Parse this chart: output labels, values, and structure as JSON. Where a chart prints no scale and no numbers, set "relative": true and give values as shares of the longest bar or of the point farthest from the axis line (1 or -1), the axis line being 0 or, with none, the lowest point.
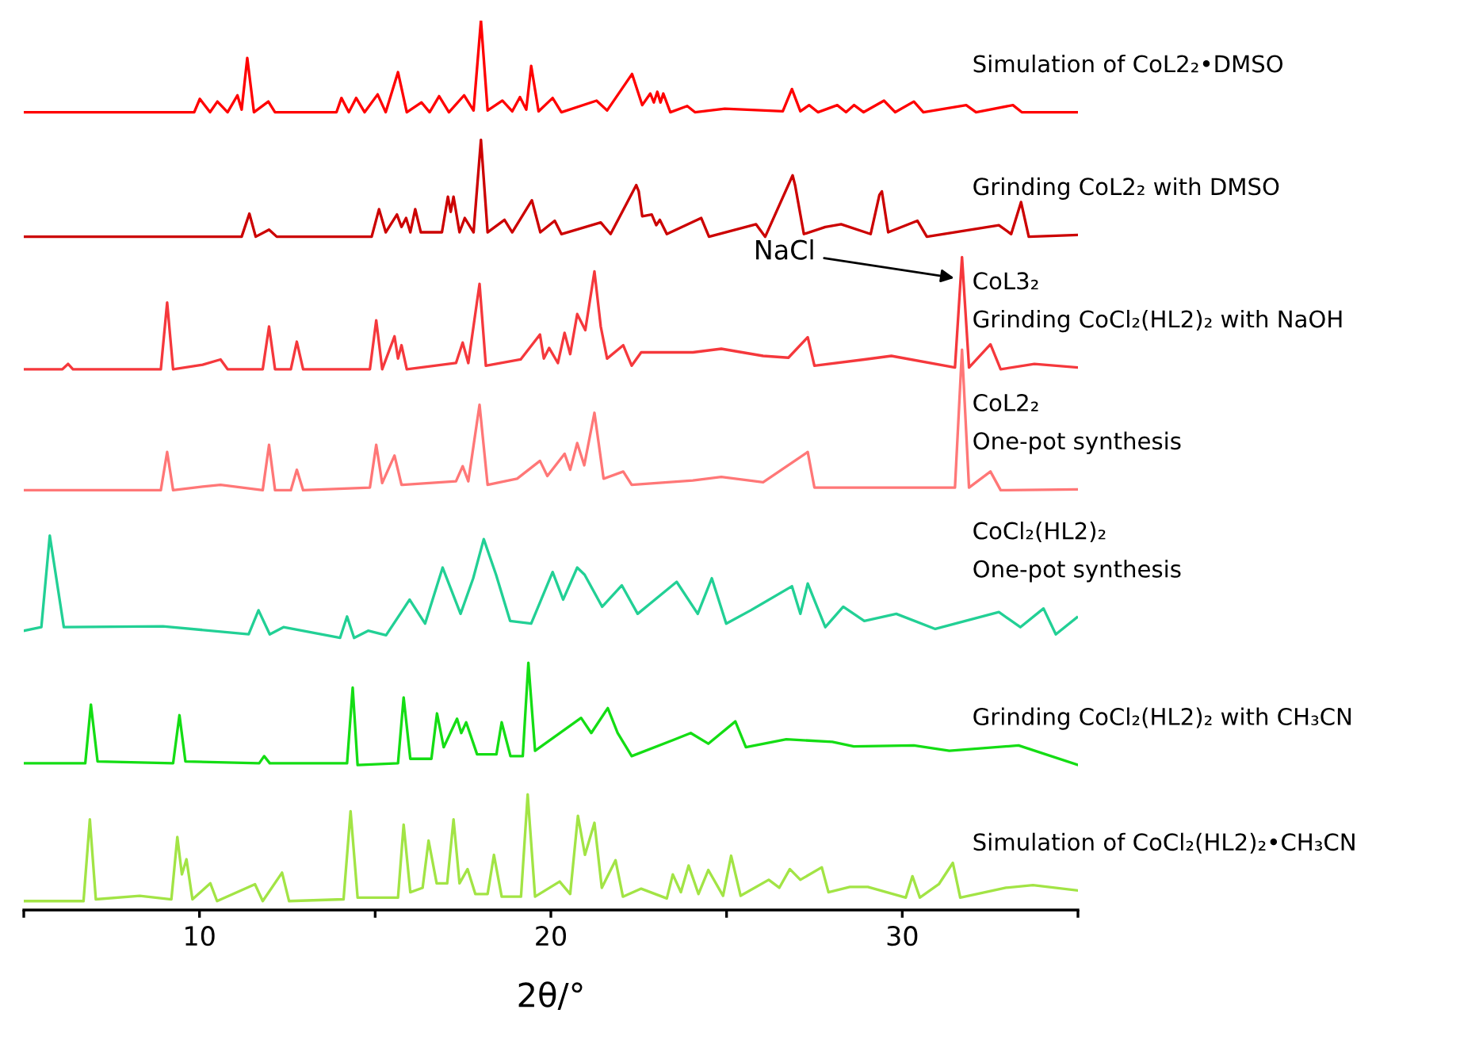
{
  "chart_data": {
    "type": "line",
    "relative": true,
    "xlabel": "2θ/°",
    "xlim": [
      5,
      35
    ],
    "xticks": [
      {
        "value": 5,
        "label": null
      },
      10,
      {
        "value": 15,
        "label": null
      },
      20,
      {
        "value": 25,
        "label": null
      },
      30,
      {
        "value": 35,
        "label": null
      }
    ],
    "tick_labels": "x",
    "grid": false,
    "legend": false,
    "annotations": [
      {
        "text": "NaCl",
        "x": 31.6,
        "y": 0.71
      }
    ],
    "series": [
      {
        "name": "Simulation of CoL2₂•DMSO",
        "color": "#ff0000",
        "x": [
          5.0,
          9.85,
          10.01,
          10.3,
          10.51,
          10.8,
          11.08,
          11.2,
          11.36,
          11.55,
          11.96,
          12.15,
          13.9,
          14.04,
          14.25,
          14.46,
          14.7,
          15.07,
          15.3,
          15.65,
          15.9,
          16.32,
          16.55,
          16.82,
          17.1,
          17.53,
          17.8,
          18.01,
          18.2,
          18.62,
          18.9,
          19.12,
          19.3,
          19.44,
          19.65,
          20.05,
          20.3,
          21.3,
          21.6,
          22.31,
          22.6,
          22.83,
          22.93,
          23.03,
          23.12,
          23.2,
          23.4,
          23.88,
          24.1,
          24.95,
          26.6,
          26.86,
          27.1,
          27.35,
          27.6,
          28.15,
          28.4,
          28.63,
          28.9,
          29.48,
          29.8,
          30.33,
          30.6,
          31.82,
          32.1,
          33.15,
          33.4,
          35.0
        ],
        "values": [
          0.897,
          0.897,
          0.912,
          0.897,
          0.909,
          0.897,
          0.916,
          0.9,
          0.958,
          0.897,
          0.909,
          0.897,
          0.897,
          0.913,
          0.897,
          0.913,
          0.897,
          0.917,
          0.897,
          0.942,
          0.897,
          0.908,
          0.897,
          0.915,
          0.897,
          0.916,
          0.899,
          1,
          0.899,
          0.91,
          0.898,
          0.914,
          0.9,
          0.949,
          0.898,
          0.913,
          0.897,
          0.91,
          0.899,
          0.94,
          0.905,
          0.918,
          0.908,
          0.92,
          0.908,
          0.918,
          0.897,
          0.904,
          0.897,
          0.901,
          0.898,
          0.923,
          0.898,
          0.905,
          0.897,
          0.905,
          0.897,
          0.905,
          0.897,
          0.91,
          0.897,
          0.909,
          0.897,
          0.905,
          0.897,
          0.905,
          0.897,
          0.897
        ]
      },
      {
        "name": "Grinding CoL2₂ with DMSO",
        "color": "#cc0000",
        "x": [
          5.0,
          11.2,
          11.42,
          11.6,
          11.98,
          12.2,
          14.9,
          15.11,
          15.3,
          15.62,
          15.75,
          15.88,
          16.0,
          16.14,
          16.3,
          16.9,
          17.07,
          17.15,
          17.23,
          17.4,
          17.55,
          17.8,
          18.01,
          18.2,
          18.68,
          18.9,
          19.46,
          19.7,
          20.11,
          20.3,
          21.42,
          21.7,
          22.43,
          22.5,
          22.6,
          22.87,
          23.0,
          23.1,
          23.3,
          24.28,
          24.5,
          25.84,
          26.1,
          26.88,
          26.95,
          27.2,
          27.81,
          28.26,
          29.1,
          29.35,
          29.42,
          29.6,
          30.43,
          30.7,
          32.75,
          33.1,
          33.38,
          33.6,
          35.0
        ],
        "values": [
          0.757,
          0.757,
          0.783,
          0.757,
          0.765,
          0.757,
          0.757,
          0.788,
          0.762,
          0.782,
          0.768,
          0.778,
          0.762,
          0.788,
          0.762,
          0.762,
          0.802,
          0.785,
          0.802,
          0.762,
          0.778,
          0.762,
          0.866,
          0.762,
          0.776,
          0.762,
          0.798,
          0.762,
          0.775,
          0.76,
          0.773,
          0.76,
          0.815,
          0.808,
          0.78,
          0.782,
          0.77,
          0.776,
          0.76,
          0.778,
          0.757,
          0.771,
          0.757,
          0.826,
          0.815,
          0.76,
          0.768,
          0.771,
          0.76,
          0.804,
          0.808,
          0.762,
          0.775,
          0.757,
          0.77,
          0.76,
          0.796,
          0.757,
          0.759
        ]
      },
      {
        "name": "CoL3₂\nGrinding CoCl₂(HL2)₂ with NaOH",
        "color": "#f5383c",
        "x": [
          5.0,
          6.1,
          6.26,
          6.4,
          8.9,
          9.08,
          9.25,
          10.09,
          10.6,
          10.8,
          11.8,
          11.98,
          12.15,
          12.6,
          12.77,
          12.95,
          14.85,
          15.03,
          15.2,
          15.55,
          15.65,
          15.75,
          15.9,
          17.3,
          17.49,
          17.65,
          17.97,
          18.15,
          19.14,
          19.69,
          19.8,
          19.95,
          20.2,
          20.39,
          20.55,
          20.75,
          20.98,
          21.24,
          21.42,
          21.6,
          22.06,
          22.3,
          22.57,
          24.04,
          24.85,
          26.04,
          26.76,
          27.31,
          27.5,
          28.92,
          29.69,
          31.5,
          31.7,
          31.9,
          32.51,
          32.8,
          33.76,
          35.0
        ],
        "values": [
          0.608,
          0.608,
          0.614,
          0.608,
          0.608,
          0.683,
          0.608,
          0.613,
          0.619,
          0.608,
          0.608,
          0.656,
          0.608,
          0.608,
          0.639,
          0.608,
          0.608,
          0.663,
          0.608,
          0.645,
          0.62,
          0.635,
          0.608,
          0.615,
          0.638,
          0.615,
          0.704,
          0.612,
          0.619,
          0.647,
          0.62,
          0.632,
          0.615,
          0.649,
          0.625,
          0.67,
          0.652,
          0.718,
          0.656,
          0.62,
          0.635,
          0.612,
          0.627,
          0.627,
          0.631,
          0.623,
          0.621,
          0.644,
          0.612,
          0.619,
          0.623,
          0.61,
          0.734,
          0.61,
          0.636,
          0.608,
          0.614,
          0.61
        ]
      },
      {
        "name": "CoL2₂\nOne-pot synthesis",
        "color": "#ff7777",
        "x": [
          5.0,
          8.9,
          9.08,
          9.25,
          10.09,
          10.6,
          11.8,
          11.98,
          12.15,
          12.6,
          12.77,
          12.95,
          14.85,
          15.03,
          15.2,
          15.55,
          15.75,
          17.3,
          17.49,
          17.65,
          17.97,
          18.2,
          19.04,
          19.69,
          19.9,
          20.39,
          20.55,
          20.75,
          20.95,
          21.24,
          21.5,
          22.06,
          22.3,
          24.04,
          24.85,
          26.04,
          27.31,
          27.5,
          31.5,
          31.7,
          31.9,
          32.51,
          32.8,
          35.0
        ],
        "values": [
          0.472,
          0.472,
          0.515,
          0.472,
          0.476,
          0.478,
          0.472,
          0.523,
          0.472,
          0.472,
          0.495,
          0.472,
          0.475,
          0.523,
          0.48,
          0.511,
          0.478,
          0.482,
          0.499,
          0.482,
          0.568,
          0.478,
          0.485,
          0.505,
          0.488,
          0.513,
          0.495,
          0.525,
          0.5,
          0.559,
          0.485,
          0.493,
          0.478,
          0.483,
          0.487,
          0.481,
          0.515,
          0.475,
          0.475,
          0.63,
          0.475,
          0.493,
          0.472,
          0.473
        ]
      },
      {
        "name": "CoCl₂(HL2)₂\nOne-pot synthesis",
        "color": "#22d095",
        "x": [
          5.0,
          5.5,
          5.74,
          6.14,
          8.96,
          11.4,
          11.68,
          12.0,
          12.39,
          14.0,
          14.2,
          14.4,
          14.8,
          15.31,
          15.98,
          16.42,
          16.92,
          17.43,
          17.79,
          18.09,
          18.44,
          18.84,
          19.44,
          20.05,
          20.35,
          20.75,
          20.96,
          21.46,
          22.02,
          22.47,
          23.58,
          24.18,
          24.58,
          24.99,
          25.69,
          26.86,
          27.1,
          27.31,
          27.81,
          28.32,
          28.92,
          29.83,
          30.94,
          32.75,
          33.36,
          34.02,
          34.37,
          34.97
        ],
        "values": [
          0.314,
          0.318,
          0.421,
          0.318,
          0.319,
          0.31,
          0.337,
          0.31,
          0.318,
          0.306,
          0.33,
          0.306,
          0.314,
          0.309,
          0.349,
          0.322,
          0.385,
          0.333,
          0.373,
          0.417,
          0.377,
          0.325,
          0.322,
          0.38,
          0.349,
          0.385,
          0.377,
          0.341,
          0.365,
          0.333,
          0.369,
          0.333,
          0.373,
          0.322,
          0.337,
          0.364,
          0.333,
          0.367,
          0.318,
          0.341,
          0.325,
          0.333,
          0.316,
          0.335,
          0.318,
          0.339,
          0.31,
          0.329
        ]
      },
      {
        "name": "Grinding CoCl₂(HL2)₂ with CH₃CN",
        "color": "#14dd14",
        "x": [
          5.0,
          6.75,
          6.91,
          7.1,
          9.25,
          9.43,
          9.6,
          11.7,
          11.84,
          12.0,
          14.2,
          14.36,
          14.5,
          15.65,
          15.81,
          16.0,
          16.6,
          16.76,
          16.95,
          17.33,
          17.45,
          17.59,
          17.9,
          18.45,
          18.6,
          18.85,
          19.2,
          19.36,
          19.55,
          20.86,
          21.15,
          21.62,
          21.9,
          22.3,
          23.47,
          23.98,
          24.48,
          25.25,
          25.55,
          26.7,
          28.01,
          28.62,
          30.33,
          31.34,
          33.31,
          35.0
        ],
        "values": [
          0.165,
          0.165,
          0.231,
          0.167,
          0.165,
          0.219,
          0.167,
          0.165,
          0.173,
          0.165,
          0.165,
          0.25,
          0.163,
          0.165,
          0.239,
          0.17,
          0.17,
          0.221,
          0.183,
          0.215,
          0.199,
          0.211,
          0.175,
          0.175,
          0.211,
          0.173,
          0.173,
          0.278,
          0.179,
          0.216,
          0.199,
          0.227,
          0.199,
          0.173,
          0.191,
          0.199,
          0.187,
          0.212,
          0.183,
          0.192,
          0.189,
          0.184,
          0.185,
          0.179,
          0.185,
          0.163
        ]
      },
      {
        "name": "Simulation of CoCl₂(HL2)₂•CH₃CN",
        "color": "#a2e445",
        "x": [
          5.0,
          6.7,
          6.88,
          7.05,
          8.3,
          9.2,
          9.37,
          9.5,
          9.63,
          9.8,
          10.31,
          10.5,
          11.58,
          11.8,
          12.35,
          12.55,
          14.1,
          14.3,
          14.5,
          15.65,
          15.81,
          16.0,
          16.35,
          16.52,
          16.75,
          17.05,
          17.23,
          17.4,
          17.63,
          17.85,
          18.2,
          18.38,
          18.6,
          19.15,
          19.34,
          19.55,
          20.25,
          20.55,
          20.77,
          20.97,
          21.24,
          21.45,
          21.84,
          22.05,
          22.57,
          23.3,
          23.47,
          23.7,
          23.92,
          24.2,
          24.48,
          24.9,
          25.13,
          25.4,
          26.2,
          26.5,
          26.8,
          27.1,
          27.71,
          27.9,
          28.51,
          29.02,
          30.1,
          30.29,
          30.5,
          31.04,
          31.44,
          31.65,
          32.95,
          33.72,
          35.0
        ],
        "values": [
          0.01,
          0.01,
          0.102,
          0.012,
          0.016,
          0.012,
          0.082,
          0.04,
          0.057,
          0.012,
          0.03,
          0.01,
          0.029,
          0.01,
          0.042,
          0.01,
          0.012,
          0.111,
          0.014,
          0.014,
          0.096,
          0.02,
          0.025,
          0.078,
          0.03,
          0.03,
          0.102,
          0.03,
          0.046,
          0.018,
          0.018,
          0.062,
          0.015,
          0.015,
          0.13,
          0.015,
          0.032,
          0.018,
          0.106,
          0.062,
          0.098,
          0.025,
          0.056,
          0.015,
          0.024,
          0.013,
          0.04,
          0.02,
          0.05,
          0.018,
          0.045,
          0.016,
          0.061,
          0.016,
          0.034,
          0.025,
          0.046,
          0.034,
          0.048,
          0.02,
          0.026,
          0.026,
          0.014,
          0.038,
          0.014,
          0.029,
          0.053,
          0.014,
          0.025,
          0.028,
          0.022
        ]
      }
    ]
  }
}
